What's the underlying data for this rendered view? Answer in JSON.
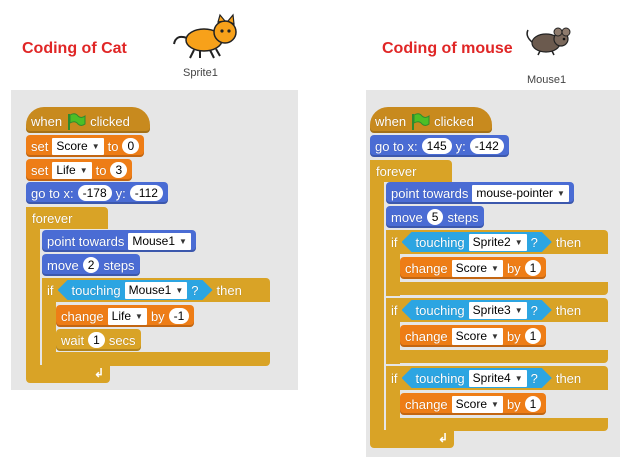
{
  "cat": {
    "title": "Coding of Cat",
    "sprite_label": "Sprite1",
    "when_flag": {
      "when": "when",
      "clicked": "clicked"
    },
    "set_score": {
      "set": "set",
      "var": "Score",
      "to": "to",
      "value": "0"
    },
    "set_life": {
      "set": "set",
      "var": "Life",
      "to": "to",
      "value": "3"
    },
    "goto": {
      "label": "go to x:",
      "x": "-178",
      "ylabel": "y:",
      "y": "-112"
    },
    "forever": "forever",
    "point_towards": {
      "label": "point towards",
      "target": "Mouse1"
    },
    "move": {
      "label": "move",
      "value": "2",
      "unit": "steps"
    },
    "if_block": {
      "if": "if",
      "touching": "touching",
      "target": "Mouse1",
      "q": "?",
      "then": "then"
    },
    "change_life": {
      "label": "change",
      "var": "Life",
      "by": "by",
      "value": "-1"
    },
    "wait": {
      "label": "wait",
      "value": "1",
      "unit": "secs"
    }
  },
  "mouse": {
    "title": "Coding of mouse",
    "sprite_label": "Mouse1",
    "when_flag": {
      "when": "when",
      "clicked": "clicked"
    },
    "goto": {
      "label": "go to x:",
      "x": "145",
      "ylabel": "y:",
      "y": "-142"
    },
    "forever": "forever",
    "point_towards": {
      "label": "point towards",
      "target": "mouse-pointer"
    },
    "move": {
      "label": "move",
      "value": "5",
      "unit": "steps"
    },
    "ifs": [
      {
        "if": "if",
        "touching": "touching",
        "target": "Sprite2",
        "q": "?",
        "then": "then",
        "change": "change",
        "var": "Score",
        "by": "by",
        "value": "1"
      },
      {
        "if": "if",
        "touching": "touching",
        "target": "Sprite3",
        "q": "?",
        "then": "then",
        "change": "change",
        "var": "Score",
        "by": "by",
        "value": "1"
      },
      {
        "if": "if",
        "touching": "touching",
        "target": "Sprite4",
        "q": "?",
        "then": "then",
        "change": "change",
        "var": "Score",
        "by": "by",
        "value": "1"
      }
    ]
  },
  "colors": {
    "events": "#c88a1e",
    "control": "#d9a326",
    "data": "#ee7d16",
    "motion": "#4a6cd4",
    "sensing": "#2ca5e2",
    "title": "#e02626"
  }
}
